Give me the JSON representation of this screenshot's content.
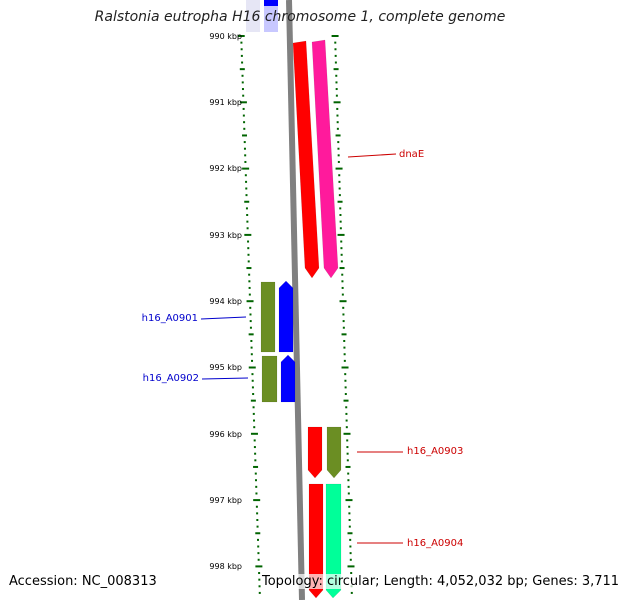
{
  "title": "Ralstonia eutropha H16 chromosome 1, complete genome",
  "footer": {
    "accession": "Accession: NC_008313",
    "topology": "Topology: circular; Length: 4,052,032 bp; Genes: 3,711"
  },
  "scale": {
    "unit": "kbp",
    "ticks": [
      "990 kbp",
      "991 kbp",
      "992 kbp",
      "993 kbp",
      "994 kbp",
      "995 kbp",
      "996 kbp",
      "997 kbp",
      "998 kbp"
    ]
  },
  "genes": [
    {
      "label": "",
      "strand": "+",
      "color": "#ff0000"
    },
    {
      "label": "dnaE",
      "strand": "+",
      "color": "#ff1a9c"
    },
    {
      "label": "h16_A0901",
      "strand": "-",
      "color": "#6b8e23"
    },
    {
      "label": "",
      "strand": "-",
      "color": "#0000ff"
    },
    {
      "label": "h16_A0902",
      "strand": "-",
      "color": "#6b8e23"
    },
    {
      "label": "",
      "strand": "-",
      "color": "#0000ff"
    },
    {
      "label": "",
      "strand": "+",
      "color": "#ff0000"
    },
    {
      "label": "h16_A0903",
      "strand": "+",
      "color": "#6b8e23"
    },
    {
      "label": "",
      "strand": "+",
      "color": "#ff0000"
    },
    {
      "label": "h16_A0904",
      "strand": "+",
      "color": "#00ff99"
    }
  ],
  "colors": {
    "backbone": "#808080",
    "tick": "#006400",
    "label_forward": "#cc0000",
    "label_reverse": "#0000cc"
  }
}
